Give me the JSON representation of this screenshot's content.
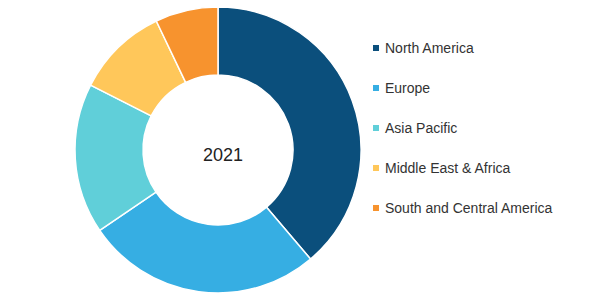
{
  "chart_data": {
    "type": "pie",
    "title": "2021",
    "categories": [
      "North America",
      "Europe",
      "Asia Pacific",
      "Middle East & Africa",
      "South and Central America"
    ],
    "values": [
      38.8,
      26.7,
      17,
      10.4,
      7.1
    ],
    "colors": [
      "#0b4f7c",
      "#36aee3",
      "#60cfd9",
      "#ffc75a",
      "#f7932e"
    ],
    "legend": "right"
  }
}
